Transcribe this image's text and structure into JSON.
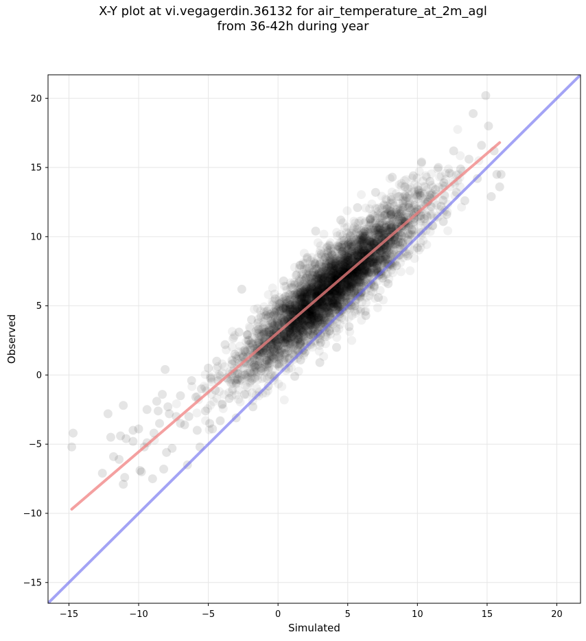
{
  "chart_data": {
    "type": "scatter",
    "title": "X-Y plot at vi.vegagerdin.36132 for air_temperature_at_2m_agl",
    "subtitle": "from 36-42h during year",
    "xlabel": "Simulated",
    "ylabel": "Observed",
    "xlim": [
      -16.5,
      21.7
    ],
    "ylim": [
      -16.5,
      21.7
    ],
    "xticks": [
      -15,
      -10,
      -5,
      0,
      5,
      10,
      15,
      20
    ],
    "yticks": [
      -15,
      -10,
      -5,
      0,
      5,
      10,
      15,
      20
    ],
    "xtick_labels": [
      "−15",
      "−10",
      "−5",
      "0",
      "5",
      "10",
      "15",
      "20"
    ],
    "ytick_labels": [
      "−15",
      "−10",
      "−5",
      "0",
      "5",
      "10",
      "15",
      "20"
    ],
    "grid": true,
    "legend": "none",
    "colors": {
      "points": "#000000",
      "fit_line": "#f08080",
      "identity_line": "#6666ee",
      "grid": "#e6e6e6"
    },
    "fit_line": {
      "x": [
        -14.8,
        15.9
      ],
      "y": [
        -9.7,
        16.8
      ]
    },
    "identity_line": {
      "x": [
        -16.5,
        21.7
      ],
      "y": [
        -16.5,
        21.7
      ]
    },
    "points": [
      [
        -14.8,
        -5.2
      ],
      [
        -14.7,
        -4.2
      ],
      [
        -12.6,
        -7.1
      ],
      [
        -12.2,
        -2.8
      ],
      [
        -12.0,
        -4.5
      ],
      [
        -11.8,
        -5.9
      ],
      [
        -11.4,
        -6.1
      ],
      [
        -11.3,
        -4.4
      ],
      [
        -11.1,
        -2.2
      ],
      [
        -11.1,
        -7.9
      ],
      [
        -11.0,
        -7.4
      ],
      [
        -10.9,
        -4.6
      ],
      [
        -10.4,
        -4.0
      ],
      [
        -10.4,
        -4.8
      ],
      [
        -10.0,
        -3.9
      ],
      [
        -9.9,
        -6.9
      ],
      [
        -9.8,
        -7.0
      ],
      [
        -9.6,
        -5.2
      ],
      [
        -9.4,
        -2.5
      ],
      [
        -9.4,
        -4.9
      ],
      [
        -9.0,
        -7.5
      ],
      [
        -8.9,
        -4.2
      ],
      [
        -8.7,
        -1.9
      ],
      [
        -8.6,
        -2.6
      ],
      [
        -8.5,
        -3.5
      ],
      [
        -8.3,
        -1.4
      ],
      [
        -8.2,
        -6.8
      ],
      [
        -8.1,
        0.4
      ],
      [
        -8.0,
        -5.6
      ],
      [
        -7.9,
        -2.3
      ],
      [
        -7.8,
        -2.8
      ],
      [
        -7.6,
        -5.3
      ],
      [
        -7.3,
        -3.0
      ],
      [
        -7.0,
        -1.5
      ],
      [
        -7.0,
        -3.5
      ],
      [
        -6.7,
        -3.6
      ],
      [
        -6.5,
        -6.5
      ],
      [
        -6.4,
        -3.0
      ],
      [
        -6.2,
        -0.4
      ],
      [
        -5.9,
        -1.6
      ],
      [
        -5.8,
        -4.0
      ],
      [
        -5.6,
        -5.2
      ],
      [
        -5.5,
        -1.0
      ],
      [
        -5.2,
        -2.6
      ],
      [
        -5.0,
        0.5
      ],
      [
        -4.9,
        -3.5
      ],
      [
        -4.7,
        -3.9
      ],
      [
        -4.5,
        -1.1
      ],
      [
        -4.4,
        1.0
      ],
      [
        -4.3,
        -0.4
      ],
      [
        -4.0,
        -2.1
      ],
      [
        -3.8,
        2.2
      ],
      [
        -3.7,
        -0.2
      ],
      [
        -3.5,
        -1.7
      ],
      [
        -3.3,
        0.8
      ],
      [
        -3.1,
        1.5
      ],
      [
        -3.0,
        -3.1
      ],
      [
        -2.9,
        0.1
      ],
      [
        -2.8,
        3.1
      ],
      [
        -2.6,
        6.2
      ],
      [
        -2.5,
        1.3
      ],
      [
        -2.4,
        -1.4
      ],
      [
        -2.2,
        2.9
      ],
      [
        -2.0,
        0.2
      ],
      [
        -1.9,
        4.0
      ],
      [
        -1.8,
        -2.3
      ],
      [
        -1.5,
        1.9
      ],
      [
        -1.4,
        3.3
      ],
      [
        -1.2,
        0.5
      ],
      [
        -1.0,
        2.4
      ],
      [
        -0.8,
        4.6
      ],
      [
        -0.7,
        -0.8
      ],
      [
        -0.5,
        1.4
      ],
      [
        -0.3,
        3.0
      ],
      [
        -0.2,
        5.5
      ],
      [
        0.0,
        2.1
      ],
      [
        0.1,
        0.6
      ],
      [
        0.3,
        3.8
      ],
      [
        0.4,
        6.8
      ],
      [
        0.6,
        2.7
      ],
      [
        0.8,
        1.2
      ],
      [
        0.9,
        4.9
      ],
      [
        1.0,
        3.3
      ],
      [
        1.2,
        -0.1
      ],
      [
        1.3,
        7.2
      ],
      [
        1.5,
        2.2
      ],
      [
        1.6,
        5.6
      ],
      [
        1.8,
        3.7
      ],
      [
        1.9,
        1.6
      ],
      [
        2.1,
        8.5
      ],
      [
        2.2,
        4.4
      ],
      [
        2.4,
        6.3
      ],
      [
        2.5,
        2.8
      ],
      [
        2.7,
        10.4
      ],
      [
        2.8,
        5.1
      ],
      [
        3.0,
        0.9
      ],
      [
        3.1,
        7.4
      ],
      [
        3.3,
        4.0
      ],
      [
        3.4,
        6.0
      ],
      [
        3.6,
        9.0
      ],
      [
        3.7,
        3.2
      ],
      [
        3.9,
        5.4
      ],
      [
        4.0,
        7.9
      ],
      [
        4.2,
        2.0
      ],
      [
        4.3,
        6.6
      ],
      [
        4.5,
        11.2
      ],
      [
        4.6,
        4.7
      ],
      [
        4.8,
        8.6
      ],
      [
        4.9,
        6.2
      ],
      [
        5.1,
        3.5
      ],
      [
        5.2,
        9.6
      ],
      [
        5.4,
        7.1
      ],
      [
        5.5,
        5.0
      ],
      [
        5.7,
        12.1
      ],
      [
        5.8,
        8.2
      ],
      [
        6.0,
        6.0
      ],
      [
        6.1,
        10.0
      ],
      [
        6.3,
        4.3
      ],
      [
        6.4,
        8.8
      ],
      [
        6.6,
        11.3
      ],
      [
        6.7,
        7.4
      ],
      [
        6.9,
        9.5
      ],
      [
        7.0,
        13.2
      ],
      [
        7.2,
        5.6
      ],
      [
        7.3,
        10.6
      ],
      [
        7.5,
        8.3
      ],
      [
        7.6,
        12.3
      ],
      [
        7.8,
        9.2
      ],
      [
        7.9,
        6.6
      ],
      [
        8.1,
        11.6
      ],
      [
        8.2,
        14.3
      ],
      [
        8.4,
        10.1
      ],
      [
        8.5,
        7.9
      ],
      [
        8.7,
        12.9
      ],
      [
        8.8,
        9.6
      ],
      [
        9.0,
        11.1
      ],
      [
        9.1,
        13.6
      ],
      [
        9.3,
        8.6
      ],
      [
        9.4,
        12.1
      ],
      [
        9.6,
        10.5
      ],
      [
        9.7,
        14.4
      ],
      [
        9.9,
        11.8
      ],
      [
        10.0,
        9.2
      ],
      [
        10.2,
        13.0
      ],
      [
        10.3,
        15.4
      ],
      [
        10.5,
        11.3
      ],
      [
        10.7,
        12.5
      ],
      [
        10.9,
        14.0
      ],
      [
        11.1,
        10.8
      ],
      [
        11.3,
        13.4
      ],
      [
        11.5,
        15.0
      ],
      [
        11.7,
        12.2
      ],
      [
        11.9,
        13.9
      ],
      [
        12.1,
        11.6
      ],
      [
        12.3,
        14.6
      ],
      [
        12.6,
        16.2
      ],
      [
        12.8,
        13.2
      ],
      [
        13.1,
        14.9
      ],
      [
        13.4,
        12.6
      ],
      [
        13.7,
        15.6
      ],
      [
        14.0,
        18.9
      ],
      [
        14.3,
        14.2
      ],
      [
        14.6,
        16.6
      ],
      [
        14.9,
        20.2
      ],
      [
        15.1,
        18.0
      ],
      [
        15.3,
        12.9
      ],
      [
        15.5,
        16.2
      ],
      [
        15.7,
        14.5
      ],
      [
        15.9,
        13.6
      ],
      [
        16.0,
        14.5
      ]
    ]
  }
}
